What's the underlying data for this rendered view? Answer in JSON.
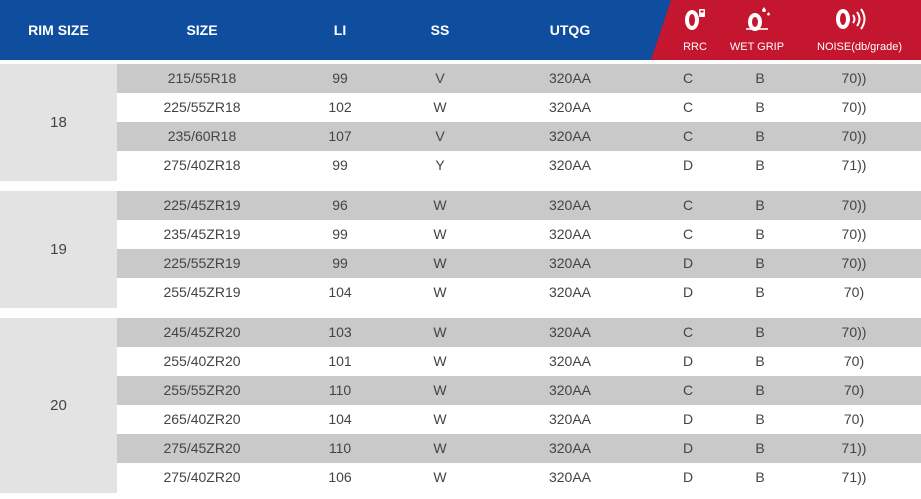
{
  "header": {
    "rim_size": "RIM SIZE",
    "size": "SIZE",
    "li": "LI",
    "ss": "SS",
    "utqg": "UTQG",
    "rrc": "RRC",
    "wet_grip": "WET GRIP",
    "noise": "NOISE(db/grade)",
    "icons": [
      "tire-fuel-icon",
      "tire-rain-icon",
      "tire-noise-icon"
    ]
  },
  "colors": {
    "header_blue": "#0f4e9f",
    "header_red": "#c5162f",
    "row_dark": "#c9c9c9",
    "rim_bg": "#e3e3e3"
  },
  "groups": [
    {
      "rim": "18",
      "rows": [
        {
          "size": "215/55R18",
          "li": "99",
          "ss": "V",
          "utqg": "320AA",
          "rrc": "C",
          "wet": "B",
          "noise": "70))"
        },
        {
          "size": "225/55ZR18",
          "li": "102",
          "ss": "W",
          "utqg": "320AA",
          "rrc": "C",
          "wet": "B",
          "noise": "70))"
        },
        {
          "size": "235/60R18",
          "li": "107",
          "ss": "V",
          "utqg": "320AA",
          "rrc": "C",
          "wet": "B",
          "noise": "70))"
        },
        {
          "size": "275/40ZR18",
          "li": "99",
          "ss": "Y",
          "utqg": "320AA",
          "rrc": "D",
          "wet": "B",
          "noise": "71))"
        }
      ]
    },
    {
      "rim": "19",
      "rows": [
        {
          "size": "225/45ZR19",
          "li": "96",
          "ss": "W",
          "utqg": "320AA",
          "rrc": "C",
          "wet": "B",
          "noise": "70))"
        },
        {
          "size": "235/45ZR19",
          "li": "99",
          "ss": "W",
          "utqg": "320AA",
          "rrc": "C",
          "wet": "B",
          "noise": "70))"
        },
        {
          "size": "225/55ZR19",
          "li": "99",
          "ss": "W",
          "utqg": "320AA",
          "rrc": "D",
          "wet": "B",
          "noise": "70))"
        },
        {
          "size": "255/45ZR19",
          "li": "104",
          "ss": "W",
          "utqg": "320AA",
          "rrc": "D",
          "wet": "B",
          "noise": "70)"
        }
      ]
    },
    {
      "rim": "20",
      "rows": [
        {
          "size": "245/45ZR20",
          "li": "103",
          "ss": "W",
          "utqg": "320AA",
          "rrc": "C",
          "wet": "B",
          "noise": "70))"
        },
        {
          "size": "255/40ZR20",
          "li": "101",
          "ss": "W",
          "utqg": "320AA",
          "rrc": "D",
          "wet": "B",
          "noise": "70)"
        },
        {
          "size": "255/55ZR20",
          "li": "110",
          "ss": "W",
          "utqg": "320AA",
          "rrc": "C",
          "wet": "B",
          "noise": "70)"
        },
        {
          "size": "265/40ZR20",
          "li": "104",
          "ss": "W",
          "utqg": "320AA",
          "rrc": "D",
          "wet": "B",
          "noise": "70)"
        },
        {
          "size": "275/45ZR20",
          "li": "110",
          "ss": "W",
          "utqg": "320AA",
          "rrc": "D",
          "wet": "B",
          "noise": "71))"
        },
        {
          "size": "275/40ZR20",
          "li": "106",
          "ss": "W",
          "utqg": "320AA",
          "rrc": "D",
          "wet": "B",
          "noise": "71))"
        }
      ]
    }
  ]
}
